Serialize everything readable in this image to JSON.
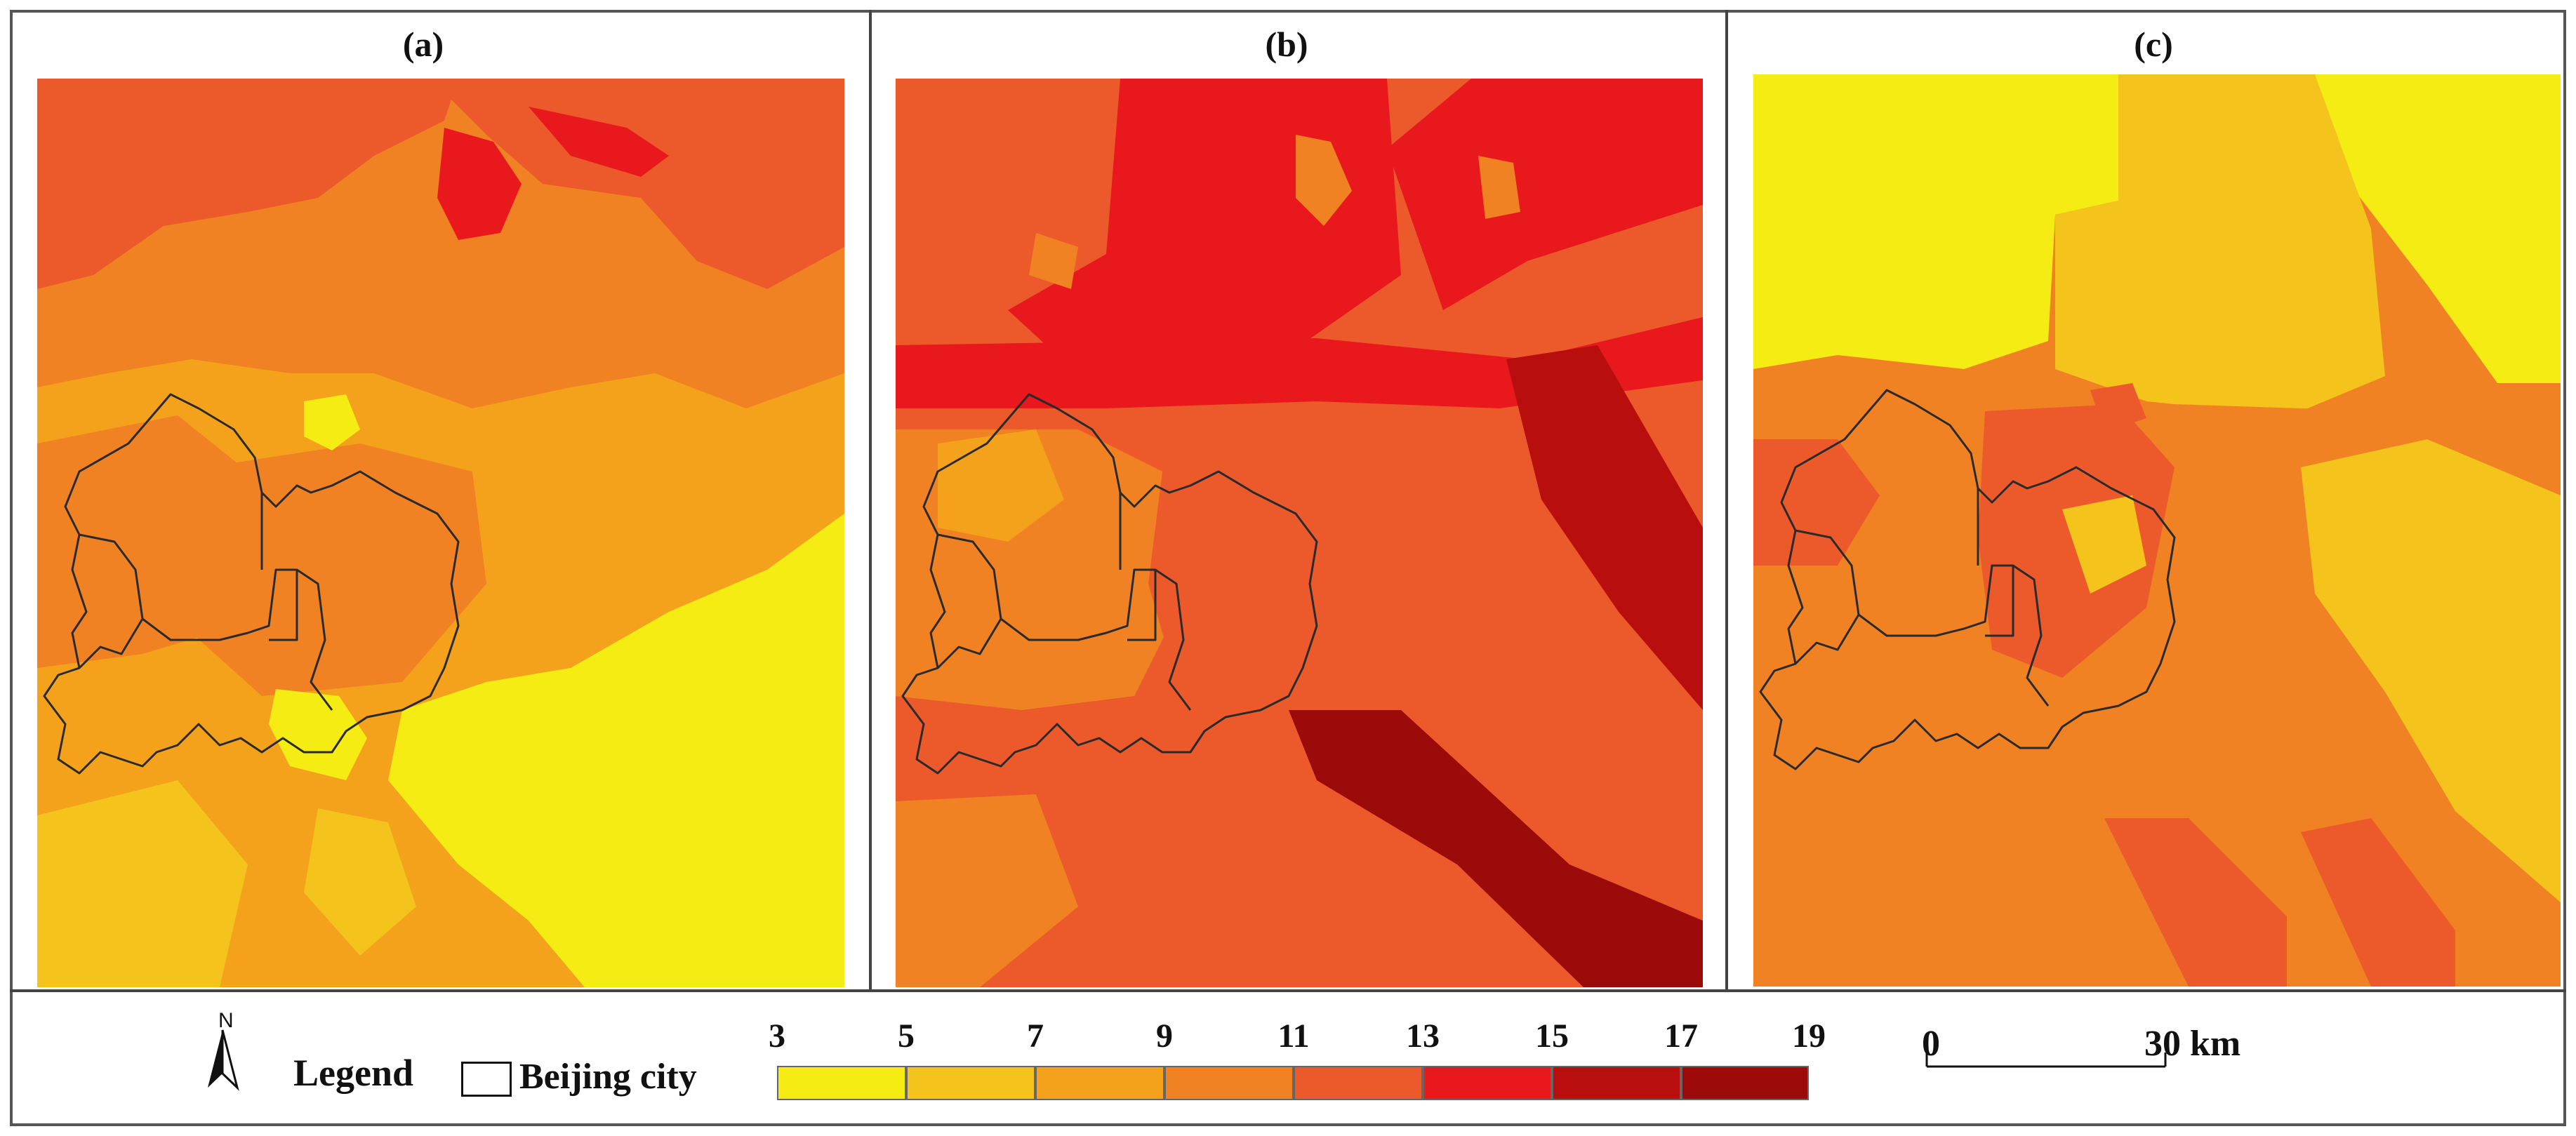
{
  "panels": [
    {
      "label": "(a)"
    },
    {
      "label": "(b)"
    },
    {
      "label": "(c)"
    }
  ],
  "legend": {
    "title": "Legend",
    "boundary_label": "Beijing city",
    "north_label": "N",
    "breaks": [
      "3",
      "5",
      "7",
      "9",
      "11",
      "13",
      "15",
      "17",
      "19"
    ],
    "bin_colors": [
      "#f5ec14",
      "#f4c31c",
      "#f4a21c",
      "#f08224",
      "#ec5a2c",
      "#e8181c",
      "#b80e0e",
      "#9c0a0a"
    ]
  },
  "scalebar": {
    "start_label": "0",
    "end_label": "30 km"
  },
  "colors": {
    "c3_5": "#f5ec14",
    "c5_7": "#f4c31c",
    "c7_9": "#f4a21c",
    "c9_11": "#f08224",
    "c11_13": "#ec5a2c",
    "c13_15": "#e8181c",
    "c15_17": "#b80e0e",
    "c17_19": "#9c0a0a",
    "boundary": "#2a2a2a"
  }
}
